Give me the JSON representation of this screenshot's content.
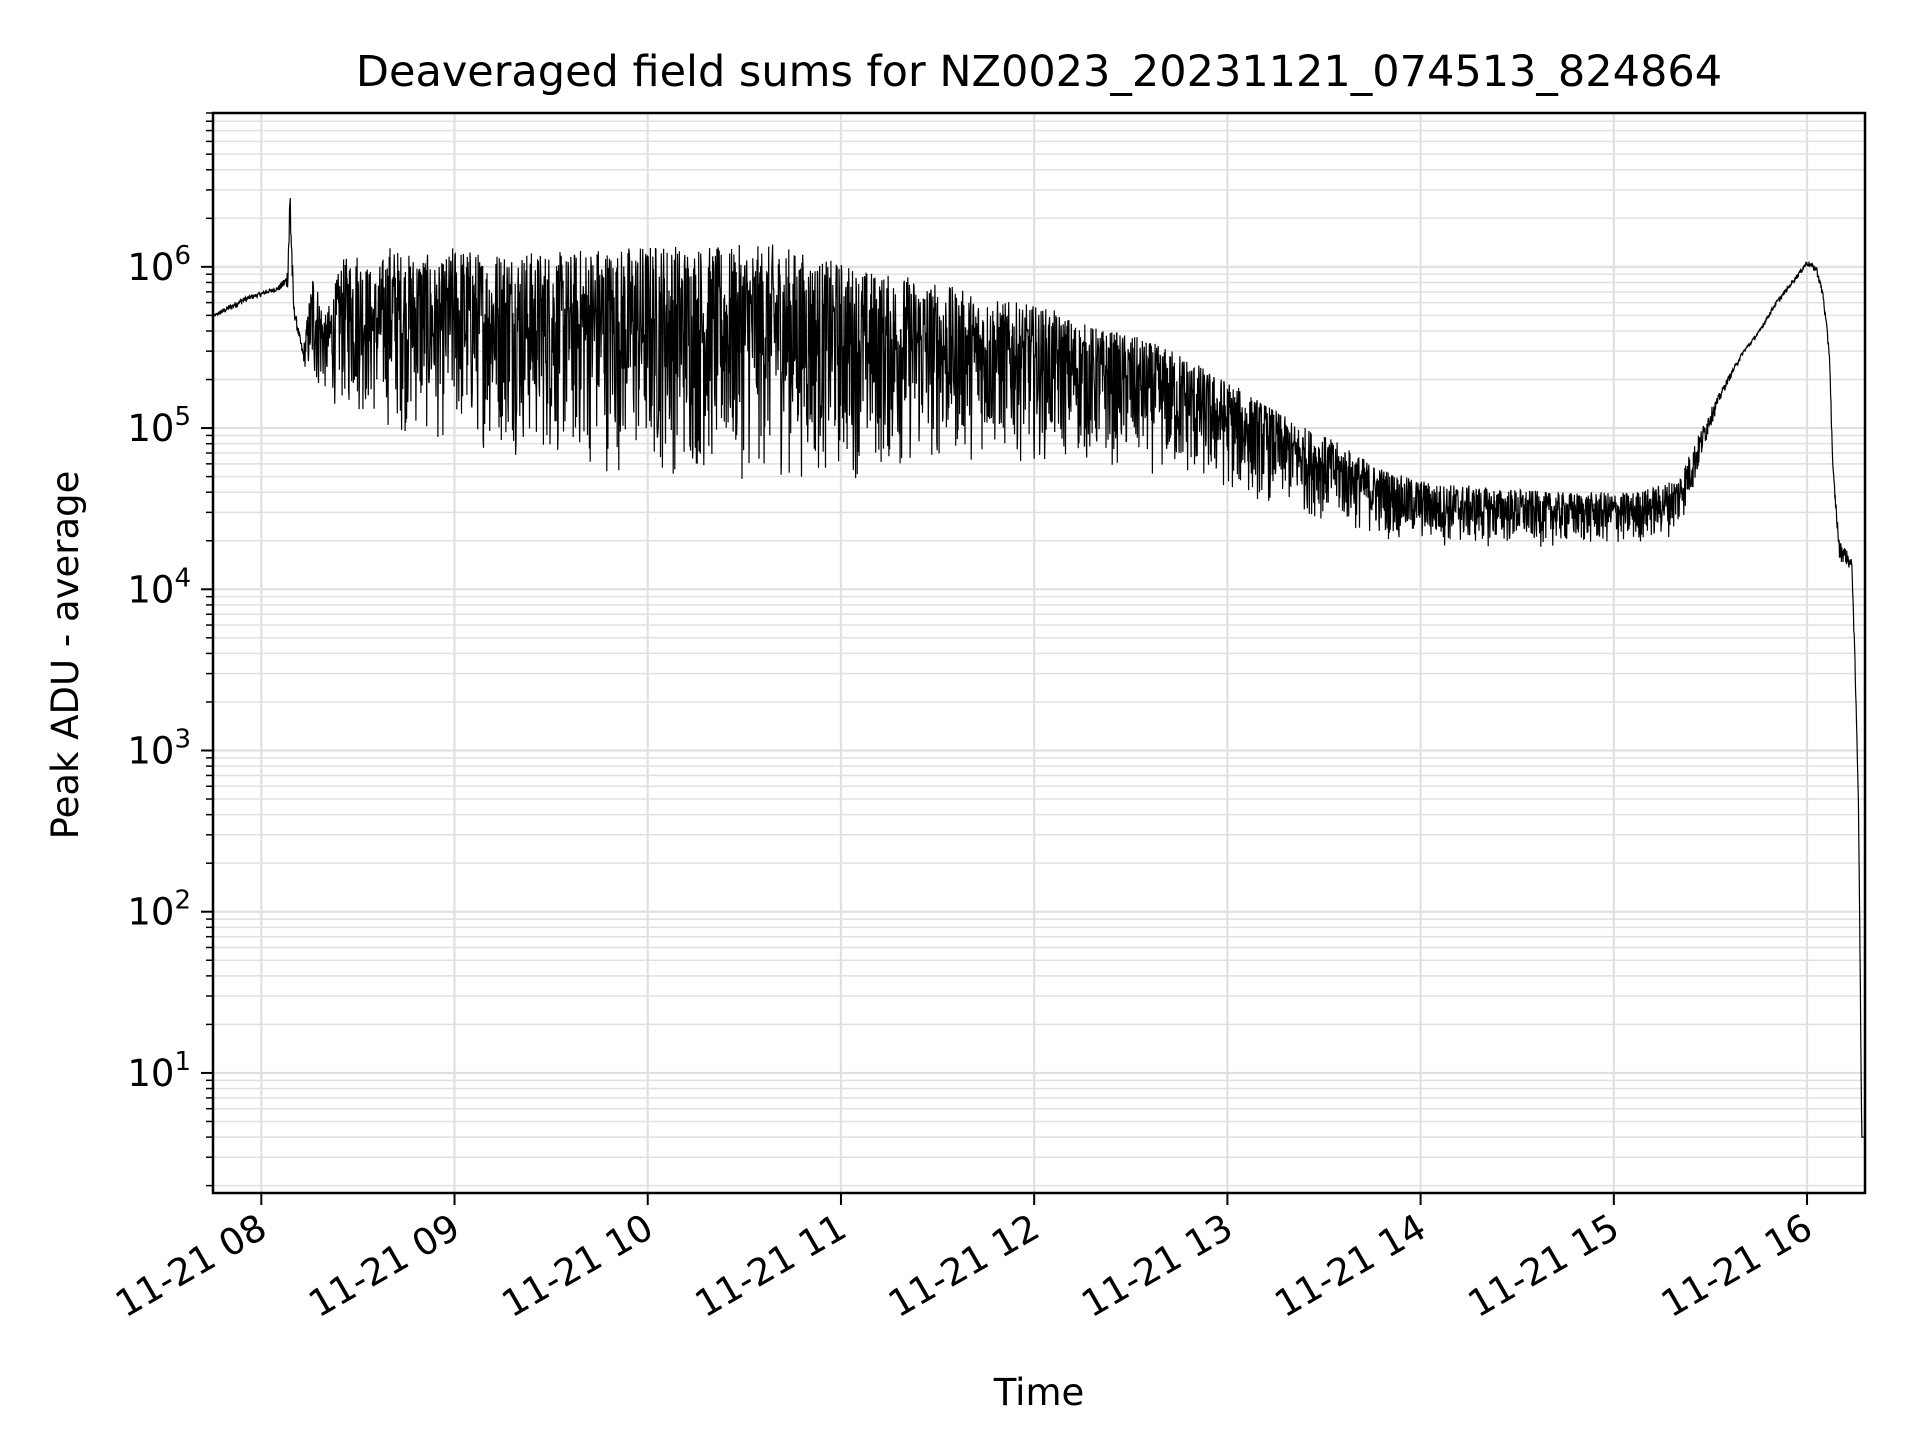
{
  "chart_data": {
    "type": "line",
    "title": "Deaveraged field sums for NZ0023_20231121_074513_824864",
    "xlabel": "Time",
    "ylabel": "Peak ADU - average",
    "y_scale": "log",
    "ylim": [
      1.8,
      9000000
    ],
    "xlim": [
      "2023-11-21 07:45",
      "2023-11-21 16:18"
    ],
    "grid": true,
    "line_color": "#000000",
    "grid_color": "#e0e0e0",
    "x_ticks": [
      {
        "value": "2023-11-21 08:00",
        "label": "11-21 08"
      },
      {
        "value": "2023-11-21 09:00",
        "label": "11-21 09"
      },
      {
        "value": "2023-11-21 10:00",
        "label": "11-21 10"
      },
      {
        "value": "2023-11-21 11:00",
        "label": "11-21 11"
      },
      {
        "value": "2023-11-21 12:00",
        "label": "11-21 12"
      },
      {
        "value": "2023-11-21 13:00",
        "label": "11-21 13"
      },
      {
        "value": "2023-11-21 14:00",
        "label": "11-21 14"
      },
      {
        "value": "2023-11-21 15:00",
        "label": "11-21 15"
      },
      {
        "value": "2023-11-21 16:00",
        "label": "11-21 16"
      }
    ],
    "y_ticks": [
      {
        "value": 10,
        "base": "10",
        "exp": "1"
      },
      {
        "value": 100,
        "base": "10",
        "exp": "2"
      },
      {
        "value": 1000,
        "base": "10",
        "exp": "3"
      },
      {
        "value": 10000,
        "base": "10",
        "exp": "4"
      },
      {
        "value": 100000,
        "base": "10",
        "exp": "5"
      },
      {
        "value": 1000000,
        "base": "10",
        "exp": "6"
      }
    ],
    "series": [
      {
        "values_note": "",
        "x": [
          "2023-11-21 07:45",
          "2023-11-21 07:50",
          "2023-11-21 07:55",
          "2023-11-21 08:00",
          "2023-11-21 08:05",
          "2023-11-21 08:08",
          "2023-11-21 08:09",
          "2023-11-21 08:10",
          "2023-11-21 08:13",
          "2023-11-21 08:16",
          "2023-11-21 08:20",
          "2023-11-21 08:25",
          "2023-11-21 08:30",
          "2023-11-21 08:35",
          "2023-11-21 08:40",
          "2023-11-21 08:45",
          "2023-11-21 08:50",
          "2023-11-21 08:55",
          "2023-11-21 09:00",
          "2023-11-21 09:05",
          "2023-11-21 09:10",
          "2023-11-21 09:15",
          "2023-11-21 09:20",
          "2023-11-21 09:25",
          "2023-11-21 09:30",
          "2023-11-21 09:35",
          "2023-11-21 09:40",
          "2023-11-21 09:45",
          "2023-11-21 09:50",
          "2023-11-21 09:55",
          "2023-11-21 10:00",
          "2023-11-21 10:05",
          "2023-11-21 10:10",
          "2023-11-21 10:15",
          "2023-11-21 10:20",
          "2023-11-21 10:25",
          "2023-11-21 10:30",
          "2023-11-21 10:35",
          "2023-11-21 10:40",
          "2023-11-21 10:45",
          "2023-11-21 10:50",
          "2023-11-21 10:55",
          "2023-11-21 11:00",
          "2023-11-21 11:05",
          "2023-11-21 11:10",
          "2023-11-21 11:15",
          "2023-11-21 11:20",
          "2023-11-21 11:25",
          "2023-11-21 11:30",
          "2023-11-21 11:35",
          "2023-11-21 11:40",
          "2023-11-21 11:45",
          "2023-11-21 11:50",
          "2023-11-21 11:55",
          "2023-11-21 12:00",
          "2023-11-21 12:05",
          "2023-11-21 12:10",
          "2023-11-21 12:15",
          "2023-11-21 12:20",
          "2023-11-21 12:25",
          "2023-11-21 12:30",
          "2023-11-21 12:35",
          "2023-11-21 12:40",
          "2023-11-21 12:45",
          "2023-11-21 12:50",
          "2023-11-21 12:55",
          "2023-11-21 13:00",
          "2023-11-21 13:05",
          "2023-11-21 13:10",
          "2023-11-21 13:15",
          "2023-11-21 13:20",
          "2023-11-21 13:25",
          "2023-11-21 13:30",
          "2023-11-21 13:35",
          "2023-11-21 13:40",
          "2023-11-21 13:45",
          "2023-11-21 13:50",
          "2023-11-21 13:55",
          "2023-11-21 14:00",
          "2023-11-21 14:05",
          "2023-11-21 14:10",
          "2023-11-21 14:15",
          "2023-11-21 14:20",
          "2023-11-21 14:25",
          "2023-11-21 14:30",
          "2023-11-21 14:35",
          "2023-11-21 14:40",
          "2023-11-21 14:45",
          "2023-11-21 14:50",
          "2023-11-21 14:55",
          "2023-11-21 15:00",
          "2023-11-21 15:05",
          "2023-11-21 15:10",
          "2023-11-21 15:15",
          "2023-11-21 15:20",
          "2023-11-21 15:25",
          "2023-11-21 15:30",
          "2023-11-21 15:35",
          "2023-11-21 15:40",
          "2023-11-21 15:45",
          "2023-11-21 15:50",
          "2023-11-21 15:55",
          "2023-11-21 16:00",
          "2023-11-21 16:03",
          "2023-11-21 16:05",
          "2023-11-21 16:07",
          "2023-11-21 16:08",
          "2023-11-21 16:10",
          "2023-11-21 16:12",
          "2023-11-21 16:14",
          "2023-11-21 16:15",
          "2023-11-21 16:16",
          "2023-11-21 16:17",
          "2023-11-21 16:18"
        ],
        "y": [
          500000,
          580000,
          650000,
          700000,
          750000,
          900000,
          4500000,
          600000,
          300000,
          1000000,
          500000,
          1100000,
          1300000,
          900000,
          1400000,
          1200000,
          1300000,
          1000000,
          1400000,
          1300000,
          1200000,
          1350000,
          1300000,
          1250000,
          1300000,
          1200000,
          1350000,
          1400000,
          1300000,
          1400000,
          1400000,
          1450000,
          1400000,
          1400000,
          1350000,
          1300000,
          1400000,
          1350000,
          1400000,
          1300000,
          1200000,
          1100000,
          1100000,
          1000000,
          950000,
          900000,
          900000,
          850000,
          800000,
          750000,
          700000,
          650000,
          620000,
          600000,
          580000,
          550000,
          500000,
          450000,
          420000,
          400000,
          380000,
          350000,
          320000,
          300000,
          260000,
          220000,
          200000,
          170000,
          150000,
          130000,
          110000,
          100000,
          90000,
          80000,
          70000,
          60000,
          55000,
          50000,
          48000,
          45000,
          45000,
          44000,
          43000,
          42000,
          42000,
          41000,
          40000,
          40000,
          40000,
          40000,
          40000,
          40000,
          42000,
          45000,
          50000,
          80000,
          130000,
          200000,
          300000,
          400000,
          600000,
          800000,
          1100000,
          1000000,
          700000,
          300000,
          60000,
          20000,
          18000,
          15000,
          3000,
          500,
          4,
          4
        ],
        "y_low": [
          480000,
          520000,
          600000,
          650000,
          700000,
          700000,
          700000,
          500000,
          250000,
          150000,
          150000,
          120000,
          110000,
          100000,
          90000,
          85000,
          80000,
          75000,
          75000,
          72000,
          70000,
          68000,
          65000,
          60000,
          58000,
          55000,
          52000,
          50000,
          50000,
          48000,
          48000,
          47000,
          46000,
          45000,
          45000,
          45000,
          45000,
          45000,
          45000,
          45000,
          45000,
          45000,
          45000,
          46000,
          47000,
          48000,
          50000,
          52000,
          55000,
          58000,
          60000,
          62000,
          62000,
          62000,
          60000,
          60000,
          58000,
          58000,
          55000,
          55000,
          52000,
          50000,
          48000,
          45000,
          42000,
          40000,
          38000,
          36000,
          34000,
          32000,
          30000,
          28000,
          26000,
          24000,
          22000,
          21000,
          20000,
          19000,
          19000,
          18000,
          18000,
          18000,
          18000,
          18000,
          18000,
          18000,
          18000,
          18000,
          18000,
          18000,
          18000,
          18000,
          19000,
          20000,
          22000,
          40000,
          100000,
          180000,
          280000,
          380000,
          550000,
          750000,
          1000000,
          900000,
          600000,
          250000,
          50000,
          15000,
          14000,
          12000,
          2500,
          400,
          4,
          4
        ]
      }
    ]
  }
}
